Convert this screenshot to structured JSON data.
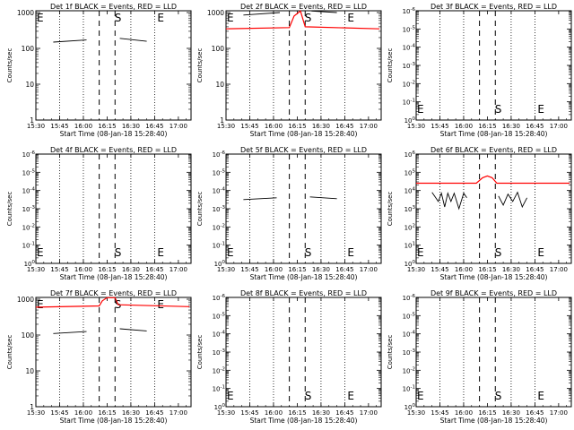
{
  "figure": {
    "xlabel": "Start Time (08-Jan-18 15:28:40)",
    "ylabel": "Counts/sec",
    "xticks": [
      "15:30",
      "15:45",
      "16:00",
      "16:15",
      "16:30",
      "16:45",
      "17:00"
    ],
    "colors": {
      "events": "#000000",
      "lld": "#ff0000"
    }
  },
  "chart_data": [
    {
      "type": "line",
      "title": "Det 1f BLACK = Events, RED = LLD",
      "yscale": "log",
      "yticks": [
        "1",
        "10",
        "100",
        "1000"
      ],
      "ylim_log": [
        0,
        3.05
      ],
      "markers": [
        {
          "label": "E",
          "time": "15:30"
        },
        {
          "label": "S",
          "time": "16:18"
        },
        {
          "label": "E",
          "time": "16:45"
        }
      ],
      "series": [
        {
          "color": "black",
          "segments": [
            {
              "t": [
                "15:41",
                "16:02"
              ],
              "v": [
                150,
                172
              ]
            },
            {
              "t": [
                "16:23",
                "16:40"
              ],
              "v": [
                190,
                158
              ]
            }
          ]
        }
      ]
    },
    {
      "type": "line",
      "title": "Det 2f BLACK = Events, RED = LLD",
      "yscale": "log",
      "yticks": [
        "1",
        "10",
        "100",
        "1000"
      ],
      "ylim_log": [
        0,
        3.05
      ],
      "markers": [
        {
          "label": "E",
          "time": "15:30"
        },
        {
          "label": "S",
          "time": "16:18"
        },
        {
          "label": "E",
          "time": "16:45"
        }
      ],
      "series": [
        {
          "color": "black",
          "segments": [
            {
              "t": [
                "15:41",
                "16:04"
              ],
              "v": [
                850,
                1000
              ]
            },
            {
              "t": [
                "16:24",
                "16:40"
              ],
              "v": [
                1100,
                1000
              ]
            }
          ]
        },
        {
          "color": "red",
          "segments": [
            {
              "t": [
                "15:30",
                "16:10",
                "16:13",
                "16:17",
                "16:20",
                "17:07"
              ],
              "v": [
                350,
                380,
                800,
                1100,
                400,
                350
              ]
            }
          ]
        }
      ]
    },
    {
      "type": "line",
      "title": "Det 3f BLACK = Events, RED = LLD",
      "yscale": "log",
      "yticks": [
        "10^0",
        "10^-1",
        "10^-2",
        "10^-3",
        "10^-4",
        "10^-5",
        "10^-6"
      ],
      "ylim_log": [
        0,
        6
      ],
      "markers": [
        {
          "label": "E",
          "time": "15:30"
        },
        {
          "label": "S",
          "time": "16:18"
        },
        {
          "label": "E",
          "time": "16:45"
        }
      ],
      "series": []
    },
    {
      "type": "line",
      "title": "Det 4f BLACK = Events, RED = LLD",
      "yscale": "log",
      "yticks": [
        "10^0",
        "10^-1",
        "10^-2",
        "10^-3",
        "10^-4",
        "10^-5",
        "10^-6"
      ],
      "ylim_log": [
        0,
        6
      ],
      "markers": [
        {
          "label": "E",
          "time": "15:30"
        },
        {
          "label": "S",
          "time": "16:18"
        },
        {
          "label": "E",
          "time": "16:45"
        }
      ],
      "series": []
    },
    {
      "type": "line",
      "title": "Det 5f BLACK = Events, RED = LLD",
      "yscale": "log",
      "yticks": [
        "10^0",
        "10^-1",
        "10^-2",
        "10^-3",
        "10^-4",
        "10^-5",
        "10^-6"
      ],
      "ylim_log": [
        0,
        6
      ],
      "markers": [
        {
          "label": "E",
          "time": "15:30"
        },
        {
          "label": "S",
          "time": "16:18"
        },
        {
          "label": "E",
          "time": "16:45"
        }
      ],
      "series": [
        {
          "color": "black",
          "segments": [
            {
              "t": [
                "15:41",
                "16:02"
              ],
              "v": [
                3.5,
                3.6
              ]
            },
            {
              "t": [
                "16:23",
                "16:40"
              ],
              "v": [
                3.65,
                3.55
              ]
            }
          ]
        }
      ]
    },
    {
      "type": "line",
      "title": "Det 6f BLACK = Events, RED = LLD",
      "yscale": "log",
      "yticks": [
        "10^0",
        "10^1",
        "10^2",
        "10^3",
        "10^4",
        "10^5",
        "10^6"
      ],
      "ylim_log": [
        0,
        6
      ],
      "markers": [
        {
          "label": "E",
          "time": "15:30"
        },
        {
          "label": "S",
          "time": "16:18"
        },
        {
          "label": "E",
          "time": "16:45"
        }
      ],
      "series": [
        {
          "color": "black",
          "segments": [
            {
              "t": [
                "15:40",
                "15:44",
                "15:46",
                "15:48",
                "15:50",
                "15:52",
                "15:54",
                "15:57",
                "16:00",
                "16:02"
              ],
              "v": [
                3.9,
                3.4,
                3.85,
                3.1,
                3.85,
                3.4,
                3.85,
                3.0,
                3.85,
                3.6
              ]
            },
            {
              "t": [
                "16:22",
                "16:25",
                "16:28",
                "16:31",
                "16:34",
                "16:37",
                "16:40"
              ],
              "v": [
                3.7,
                3.2,
                3.8,
                3.4,
                3.9,
                3.1,
                3.6
              ]
            }
          ]
        },
        {
          "color": "red",
          "segments": [
            {
              "t": [
                "15:30",
                "16:08",
                "16:12",
                "16:15",
                "16:18",
                "16:21",
                "17:07"
              ],
              "v": [
                4.4,
                4.4,
                4.7,
                4.8,
                4.7,
                4.4,
                4.4
              ]
            }
          ]
        }
      ]
    },
    {
      "type": "line",
      "title": "Det 7f BLACK = Events, RED = LLD",
      "yscale": "log",
      "yticks": [
        "1",
        "10",
        "100",
        "1000"
      ],
      "ylim_log": [
        0,
        3.05
      ],
      "markers": [
        {
          "label": "E",
          "time": "15:30"
        },
        {
          "label": "S",
          "time": "16:18"
        },
        {
          "label": "E",
          "time": "16:45"
        }
      ],
      "series": [
        {
          "color": "black",
          "segments": [
            {
              "t": [
                "15:41",
                "16:02"
              ],
              "v": [
                110,
                125
              ]
            },
            {
              "t": [
                "16:23",
                "16:40"
              ],
              "v": [
                150,
                130
              ]
            }
          ]
        },
        {
          "color": "red",
          "segments": [
            {
              "t": [
                "15:30",
                "16:10",
                "16:12",
                "16:15",
                "16:20",
                "16:22",
                "17:07"
              ],
              "v": [
                600,
                650,
                900,
                1100,
                1100,
                700,
                620
              ]
            }
          ]
        }
      ]
    },
    {
      "type": "line",
      "title": "Det 8f BLACK = Events, RED = LLD",
      "yscale": "log",
      "yticks": [
        "10^0",
        "10^-1",
        "10^-2",
        "10^-3",
        "10^-4",
        "10^-5",
        "10^-6"
      ],
      "ylim_log": [
        0,
        6
      ],
      "markers": [
        {
          "label": "E",
          "time": "15:30"
        },
        {
          "label": "S",
          "time": "16:18"
        },
        {
          "label": "E",
          "time": "16:45"
        }
      ],
      "series": []
    },
    {
      "type": "line",
      "title": "Det 9f BLACK = Events, RED = LLD",
      "yscale": "log",
      "yticks": [
        "10^0",
        "10^-1",
        "10^-2",
        "10^-3",
        "10^-4",
        "10^-5",
        "10^-6"
      ],
      "ylim_log": [
        0,
        6
      ],
      "markers": [
        {
          "label": "E",
          "time": "15:30"
        },
        {
          "label": "S",
          "time": "16:18"
        },
        {
          "label": "E",
          "time": "16:45"
        }
      ],
      "series": []
    }
  ]
}
